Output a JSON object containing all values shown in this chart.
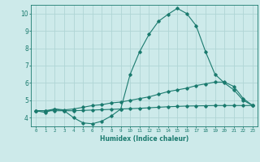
{
  "xlabel": "Humidex (Indice chaleur)",
  "x": [
    0,
    1,
    2,
    3,
    4,
    5,
    6,
    7,
    8,
    9,
    10,
    11,
    12,
    13,
    14,
    15,
    16,
    17,
    18,
    19,
    20,
    21,
    22,
    23
  ],
  "line1": [
    4.4,
    4.3,
    4.5,
    4.4,
    4.0,
    3.7,
    3.65,
    3.8,
    4.1,
    4.5,
    6.5,
    7.8,
    8.8,
    9.55,
    9.95,
    10.3,
    10.0,
    9.3,
    7.8,
    6.5,
    6.0,
    5.6,
    5.0,
    4.7
  ],
  "line2": [
    4.4,
    4.4,
    4.5,
    4.45,
    4.5,
    4.6,
    4.7,
    4.75,
    4.85,
    4.9,
    5.0,
    5.1,
    5.2,
    5.35,
    5.5,
    5.6,
    5.7,
    5.85,
    5.95,
    6.05,
    6.05,
    5.8,
    5.1,
    4.7
  ],
  "line3": [
    4.4,
    4.4,
    4.4,
    4.4,
    4.4,
    4.42,
    4.44,
    4.46,
    4.48,
    4.5,
    4.52,
    4.54,
    4.57,
    4.6,
    4.63,
    4.65,
    4.67,
    4.68,
    4.69,
    4.7,
    4.7,
    4.7,
    4.7,
    4.7
  ],
  "ylim": [
    3.5,
    10.5
  ],
  "xlim": [
    -0.5,
    23.5
  ],
  "yticks": [
    4,
    5,
    6,
    7,
    8,
    9,
    10
  ],
  "xticks": [
    0,
    1,
    2,
    3,
    4,
    5,
    6,
    7,
    8,
    9,
    10,
    11,
    12,
    13,
    14,
    15,
    16,
    17,
    18,
    19,
    20,
    21,
    22,
    23
  ],
  "line_color": "#1a7a6e",
  "bg_color": "#cdeaea",
  "grid_color": "#b0d5d5",
  "xlabel_fontsize": 5.5,
  "ytick_fontsize": 5.5,
  "xtick_fontsize": 4.2
}
